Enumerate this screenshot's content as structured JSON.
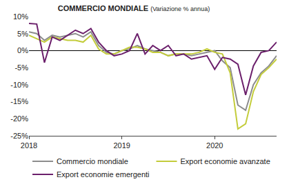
{
  "chart_data": {
    "type": "line",
    "title": "COMMERCIO MONDIALE",
    "subtitle": "(Variazione % annua)",
    "categories": [
      "2018",
      null,
      null,
      null,
      null,
      null,
      null,
      null,
      null,
      null,
      null,
      null,
      "2019",
      null,
      null,
      null,
      null,
      null,
      null,
      null,
      null,
      null,
      null,
      null,
      "2020",
      null,
      null,
      null,
      null,
      null,
      null,
      null,
      null
    ],
    "series": [
      {
        "name": "Commercio mondiale",
        "color": "#8c8c8c",
        "values": [
          5.5,
          5,
          3,
          4.5,
          4,
          4.5,
          5,
          4,
          5.5,
          1.5,
          -0.5,
          -1,
          0,
          0.5,
          1.5,
          0.5,
          0,
          -0.5,
          -1.5,
          -1,
          -1,
          -1.5,
          -1,
          -0.5,
          0,
          -3,
          -5,
          -16,
          -17.5,
          -10,
          -6.5,
          -4.5,
          -1.5
        ]
      },
      {
        "name": "Export economie avanzate",
        "color": "#c3cc3a",
        "values": [
          4.5,
          3.5,
          2.5,
          4,
          3.5,
          3,
          3,
          2.5,
          4.5,
          0.5,
          -1,
          -1,
          0,
          1,
          1,
          0.5,
          -0.5,
          -0.5,
          -1.5,
          -1,
          -1,
          -1,
          -0.5,
          0.5,
          -0.5,
          -1,
          -6.5,
          -23,
          -21.5,
          -12,
          -7,
          -5,
          -2.5
        ]
      },
      {
        "name": "Export economie emergenti",
        "color": "#6b1f6b",
        "values": [
          8,
          7.8,
          -3.5,
          4,
          3,
          4.5,
          6,
          5,
          6.5,
          2.5,
          0,
          -1.5,
          -1,
          0,
          5,
          -1,
          1.5,
          0,
          1.5,
          -1.5,
          -1,
          -2.5,
          -2,
          -1.5,
          -5.5,
          -2,
          -2.5,
          -4,
          -13,
          -4.5,
          -0.5,
          0,
          2.5
        ]
      }
    ],
    "ylim": [
      -25,
      10
    ],
    "yticks": [
      {
        "value": -25,
        "label": "-25%"
      },
      {
        "value": -20,
        "label": "-20%"
      },
      {
        "value": -15,
        "label": "-15%"
      },
      {
        "value": -10,
        "label": "-10%"
      },
      {
        "value": -5,
        "label": "-5%"
      },
      {
        "value": 0,
        "label": "0%"
      },
      {
        "value": 5,
        "label": "5%"
      },
      {
        "value": 10,
        "label": "10%"
      }
    ],
    "grid": false,
    "legend": "bottom"
  }
}
